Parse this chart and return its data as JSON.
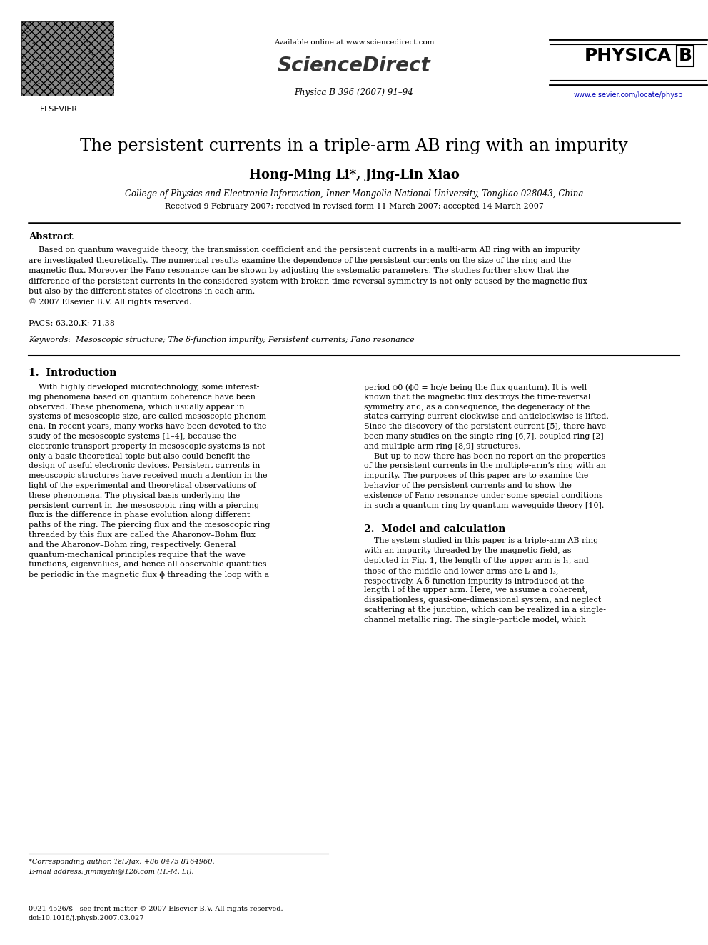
{
  "page_width": 9.92,
  "page_height": 13.23,
  "bg_color": "#ffffff",
  "available_online": "Available online at www.sciencedirect.com",
  "sciencedirect": "ScienceDirect",
  "journal_info": "Physica B 396 (2007) 91–94",
  "physica_b": "PHYSICA B",
  "elsevier": "ELSEVIER",
  "url": "www.elsevier.com/locate/physb",
  "title": "The persistent currents in a triple-arm AB ring with an impurity",
  "authors": "Hong-Ming Li*, Jing-Lin Xiao",
  "affiliation": "College of Physics and Electronic Information, Inner Mongolia National University, Tongliao 028043, China",
  "received": "Received 9 February 2007; received in revised form 11 March 2007; accepted 14 March 2007",
  "abstract_title": "Abstract",
  "abstract_lines": [
    "    Based on quantum waveguide theory, the transmission coefficient and the persistent currents in a multi-arm AB ring with an impurity",
    "are investigated theoretically. The numerical results examine the dependence of the persistent currents on the size of the ring and the",
    "magnetic flux. Moreover the Fano resonance can be shown by adjusting the systematic parameters. The studies further show that the",
    "difference of the persistent currents in the considered system with broken time-reversal symmetry is not only caused by the magnetic flux",
    "but also by the different states of electrons in each arm.",
    "© 2007 Elsevier B.V. All rights reserved."
  ],
  "pacs": "PACS: 63.20.K; 71.38",
  "keywords": "Keywords:  Mesoscopic structure; The δ-function impurity; Persistent currents; Fano resonance",
  "s1_title": "1.  Introduction",
  "s1_left": [
    "    With highly developed microtechnology, some interest-",
    "ing phenomena based on quantum coherence have been",
    "observed. These phenomena, which usually appear in",
    "systems of mesoscopic size, are called mesoscopic phenom-",
    "ena. In recent years, many works have been devoted to the",
    "study of the mesoscopic systems [1–4], because the",
    "electronic transport property in mesoscopic systems is not",
    "only a basic theoretical topic but also could benefit the",
    "design of useful electronic devices. Persistent currents in",
    "mesoscopic structures have received much attention in the",
    "light of the experimental and theoretical observations of",
    "these phenomena. The physical basis underlying the",
    "persistent current in the mesoscopic ring with a piercing",
    "flux is the difference in phase evolution along different",
    "paths of the ring. The piercing flux and the mesoscopic ring",
    "threaded by this flux are called the Aharonov–Bohm flux",
    "and the Aharonov–Bohm ring, respectively. General",
    "quantum-mechanical principles require that the wave",
    "functions, eigenvalues, and hence all observable quantities",
    "be periodic in the magnetic flux ϕ threading the loop with a"
  ],
  "s1_right": [
    "period ϕ0 (ϕ0 = hc/e being the flux quantum). It is well",
    "known that the magnetic flux destroys the time-reversal",
    "symmetry and, as a consequence, the degeneracy of the",
    "states carrying current clockwise and anticlockwise is lifted.",
    "Since the discovery of the persistent current [5], there have",
    "been many studies on the single ring [6,7], coupled ring [2]",
    "and multiple-arm ring [8,9] structures.",
    "    But up to now there has been no report on the properties",
    "of the persistent currents in the multiple-arm’s ring with an",
    "impurity. The purposes of this paper are to examine the",
    "behavior of the persistent currents and to show the",
    "existence of Fano resonance under some special conditions",
    "in such a quantum ring by quantum waveguide theory [10]."
  ],
  "s2_title": "2.  Model and calculation",
  "s2_right": [
    "    The system studied in this paper is a triple-arm AB ring",
    "with an impurity threaded by the magnetic field, as",
    "depicted in Fig. 1, the length of the upper arm is l₁, and",
    "those of the middle and lower arms are l₂ and l₃,",
    "respectively. A δ-function impurity is introduced at the",
    "length l of the upper arm. Here, we assume a coherent,",
    "dissipationless, quasi-one-dimensional system, and neglect",
    "scattering at the junction, which can be realized in a single-",
    "channel metallic ring. The single-particle model, which"
  ],
  "footer_note1": "*Corresponding author. Tel./fax: +86 0475 8164960.",
  "footer_note2": "E-mail address: jimmyzhi@126.com (H.-M. Li).",
  "footer_copy1": "0921-4526/$ - see front matter © 2007 Elsevier B.V. All rights reserved.",
  "footer_copy2": "doi:10.1016/j.physb.2007.03.027"
}
